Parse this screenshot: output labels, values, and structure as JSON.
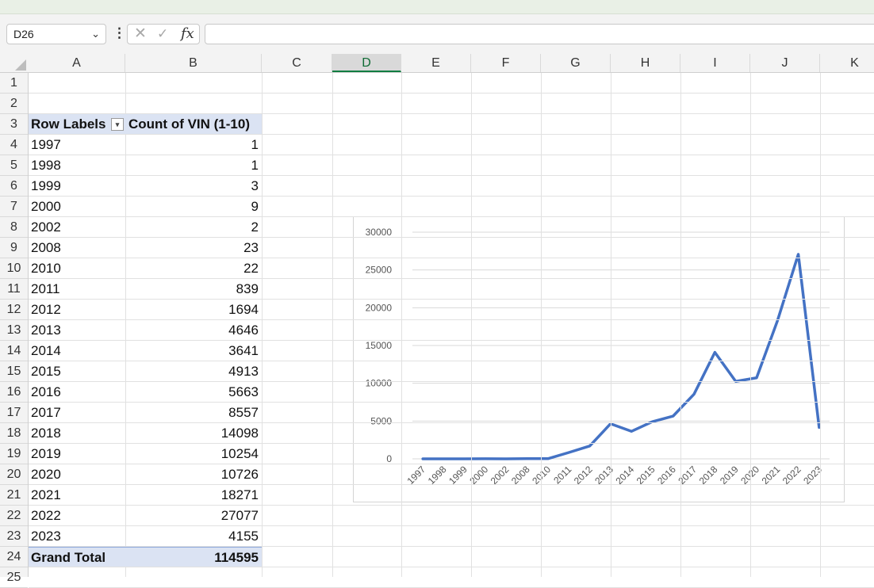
{
  "formula_bar": {
    "name_box": "D26",
    "fx_label": "fx",
    "formula": ""
  },
  "columns": [
    "A",
    "B",
    "C",
    "D",
    "E",
    "F",
    "G",
    "H",
    "I",
    "J",
    "K"
  ],
  "selected_column": "D",
  "rows": [
    "1",
    "2",
    "3",
    "4",
    "5",
    "6",
    "7",
    "8",
    "9",
    "10",
    "11",
    "12",
    "13",
    "14",
    "15",
    "16",
    "17",
    "18",
    "19",
    "20",
    "21",
    "22",
    "23",
    "24",
    "25"
  ],
  "pivot": {
    "header_row_labels": "Row Labels",
    "header_value": "Count of VIN (1-10)",
    "items": [
      {
        "label": "1997",
        "value": "1"
      },
      {
        "label": "1998",
        "value": "1"
      },
      {
        "label": "1999",
        "value": "3"
      },
      {
        "label": "2000",
        "value": "9"
      },
      {
        "label": "2002",
        "value": "2"
      },
      {
        "label": "2008",
        "value": "23"
      },
      {
        "label": "2010",
        "value": "22"
      },
      {
        "label": "2011",
        "value": "839"
      },
      {
        "label": "2012",
        "value": "1694"
      },
      {
        "label": "2013",
        "value": "4646"
      },
      {
        "label": "2014",
        "value": "3641"
      },
      {
        "label": "2015",
        "value": "4913"
      },
      {
        "label": "2016",
        "value": "5663"
      },
      {
        "label": "2017",
        "value": "8557"
      },
      {
        "label": "2018",
        "value": "14098"
      },
      {
        "label": "2019",
        "value": "10254"
      },
      {
        "label": "2020",
        "value": "10726"
      },
      {
        "label": "2021",
        "value": "18271"
      },
      {
        "label": "2022",
        "value": "27077"
      },
      {
        "label": "2023",
        "value": "4155"
      }
    ],
    "total_label": "Grand Total",
    "total_value": "114595"
  },
  "chart_data": {
    "type": "line",
    "categories": [
      "1997",
      "1998",
      "1999",
      "2000",
      "2002",
      "2008",
      "2010",
      "2011",
      "2012",
      "2013",
      "2014",
      "2015",
      "2016",
      "2017",
      "2018",
      "2019",
      "2020",
      "2021",
      "2022",
      "2023"
    ],
    "series": [
      {
        "values": [
          1,
          1,
          3,
          9,
          2,
          23,
          22,
          839,
          1694,
          4646,
          3641,
          4913,
          5663,
          8557,
          14098,
          10254,
          10726,
          18271,
          27077,
          4155
        ],
        "color": "#4472c4"
      }
    ],
    "y_ticks": [
      "0",
      "5000",
      "10000",
      "15000",
      "20000",
      "25000",
      "30000"
    ],
    "ylim": [
      0,
      30000
    ],
    "grid": true,
    "legend": "none"
  }
}
